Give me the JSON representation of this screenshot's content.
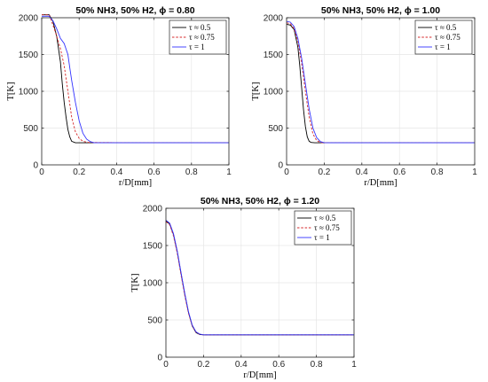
{
  "chart_data": [
    {
      "type": "line",
      "title": "50% NH3, 50% H2, ϕ = 0.80",
      "xlabel": "r/D[mm]",
      "ylabel": "T[K]",
      "xlim": [
        0,
        1
      ],
      "ylim": [
        0,
        2000
      ],
      "xticks": [
        "0",
        "0.2",
        "0.4",
        "0.6",
        "0.8",
        "1"
      ],
      "yticks": [
        "0",
        "500",
        "1000",
        "1500",
        "2000"
      ],
      "grid": true,
      "legend_position": "top-right",
      "series": [
        {
          "name": "τ ≈ 0.5",
          "color": "#000000",
          "dash": "solid",
          "x": [
            0,
            0.04,
            0.06,
            0.08,
            0.1,
            0.11,
            0.12,
            0.13,
            0.14,
            0.15,
            0.16,
            0.18,
            0.2,
            0.25,
            0.5,
            1.0
          ],
          "y": [
            2040,
            2040,
            1950,
            1750,
            1400,
            1100,
            850,
            650,
            480,
            380,
            320,
            300,
            300,
            300,
            300,
            300
          ]
        },
        {
          "name": "τ ≈ 0.75",
          "color": "#d62728",
          "dash": "dashed",
          "x": [
            0,
            0.04,
            0.06,
            0.08,
            0.1,
            0.12,
            0.14,
            0.16,
            0.18,
            0.2,
            0.22,
            0.25,
            0.5,
            1.0
          ],
          "y": [
            2040,
            2040,
            1900,
            1750,
            1580,
            1350,
            1000,
            650,
            450,
            360,
            320,
            305,
            300,
            300
          ]
        },
        {
          "name": "τ = 1",
          "color": "#3333ff",
          "dash": "solid",
          "x": [
            0,
            0.04,
            0.06,
            0.08,
            0.1,
            0.12,
            0.14,
            0.15,
            0.16,
            0.17,
            0.18,
            0.2,
            0.22,
            0.24,
            0.26,
            0.28,
            0.5,
            1.0
          ],
          "y": [
            2020,
            2020,
            1960,
            1850,
            1720,
            1650,
            1500,
            1320,
            1150,
            1000,
            850,
            600,
            430,
            350,
            315,
            300,
            300,
            300
          ]
        }
      ]
    },
    {
      "type": "line",
      "title": "50% NH3, 50% H2, ϕ = 1.00",
      "xlabel": "r/D[mm]",
      "ylabel": "T[K]",
      "xlim": [
        0,
        1
      ],
      "ylim": [
        0,
        2000
      ],
      "xticks": [
        "0",
        "0.2",
        "0.4",
        "0.6",
        "0.8",
        "1"
      ],
      "yticks": [
        "0",
        "500",
        "1000",
        "1500",
        "2000"
      ],
      "grid": true,
      "legend_position": "top-right",
      "series": [
        {
          "name": "τ ≈ 0.5",
          "color": "#000000",
          "dash": "solid",
          "x": [
            0,
            0.02,
            0.04,
            0.06,
            0.07,
            0.08,
            0.09,
            0.1,
            0.11,
            0.12,
            0.13,
            0.15,
            0.2,
            0.5,
            1.0
          ],
          "y": [
            1910,
            1900,
            1840,
            1600,
            1350,
            1050,
            750,
            520,
            380,
            320,
            305,
            300,
            300,
            300,
            300
          ]
        },
        {
          "name": "τ ≈ 0.75",
          "color": "#d62728",
          "dash": "dashed",
          "x": [
            0,
            0.02,
            0.04,
            0.06,
            0.08,
            0.1,
            0.12,
            0.14,
            0.16,
            0.18,
            0.2,
            0.5,
            1.0
          ],
          "y": [
            1930,
            1920,
            1850,
            1680,
            1380,
            1000,
            650,
            420,
            330,
            305,
            300,
            300,
            300
          ]
        },
        {
          "name": "τ = 1",
          "color": "#3333ff",
          "dash": "solid",
          "x": [
            0,
            0.02,
            0.04,
            0.06,
            0.08,
            0.1,
            0.12,
            0.14,
            0.16,
            0.18,
            0.2,
            0.22,
            0.5,
            1.0
          ],
          "y": [
            1950,
            1940,
            1880,
            1720,
            1450,
            1100,
            760,
            500,
            370,
            315,
            302,
            300,
            300,
            300
          ]
        }
      ]
    },
    {
      "type": "line",
      "title": "50% NH3, 50% H2, ϕ = 1.20",
      "xlabel": "r/D[mm]",
      "ylabel": "T[K]",
      "xlim": [
        0,
        1
      ],
      "ylim": [
        0,
        2000
      ],
      "xticks": [
        "0",
        "0.2",
        "0.4",
        "0.6",
        "0.8",
        "1"
      ],
      "yticks": [
        "0",
        "500",
        "1000",
        "1500",
        "2000"
      ],
      "grid": true,
      "legend_position": "top-right",
      "series": [
        {
          "name": "τ ≈ 0.5",
          "color": "#000000",
          "dash": "solid",
          "x": [
            0,
            0.02,
            0.04,
            0.06,
            0.08,
            0.1,
            0.12,
            0.14,
            0.16,
            0.18,
            0.2,
            0.22,
            0.5,
            1.0
          ],
          "y": [
            1830,
            1790,
            1650,
            1420,
            1130,
            850,
            600,
            420,
            330,
            305,
            300,
            300,
            300,
            300
          ]
        },
        {
          "name": "τ ≈ 0.75",
          "color": "#d62728",
          "dash": "dashed",
          "x": [
            0,
            0.02,
            0.04,
            0.06,
            0.08,
            0.1,
            0.12,
            0.14,
            0.16,
            0.18,
            0.2,
            0.22,
            0.5,
            1.0
          ],
          "y": [
            1820,
            1780,
            1630,
            1400,
            1110,
            830,
            590,
            420,
            335,
            308,
            300,
            300,
            300,
            300
          ]
        },
        {
          "name": "τ = 1",
          "color": "#3333ff",
          "dash": "solid",
          "x": [
            0,
            0.02,
            0.04,
            0.06,
            0.08,
            0.1,
            0.12,
            0.14,
            0.16,
            0.18,
            0.2,
            0.22,
            0.5,
            1.0
          ],
          "y": [
            1840,
            1800,
            1660,
            1430,
            1140,
            860,
            610,
            430,
            340,
            310,
            300,
            300,
            300,
            300
          ]
        }
      ]
    }
  ]
}
